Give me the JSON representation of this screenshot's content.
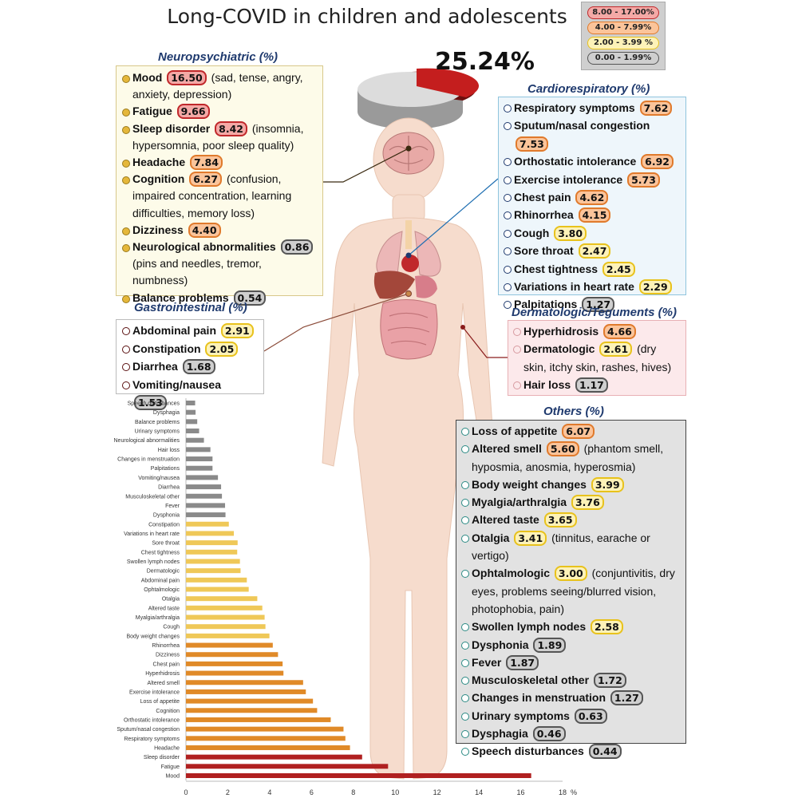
{
  "title": "Long-COVID in children and adolescents",
  "legend": [
    {
      "label": "8.00 - 17.00%",
      "fill": "#f4a9a6",
      "border": "#c0282b"
    },
    {
      "label": "4.00 - 7.99%",
      "fill": "#fbc49a",
      "border": "#e07a2c"
    },
    {
      "label": "2.00 - 3.99 %",
      "fill": "#fdf2b8",
      "border": "#e8c21c"
    },
    {
      "label": "0.00 - 1.99%",
      "fill": "#cfcfcf",
      "border": "#555555"
    }
  ],
  "pie": {
    "label": "25.24%",
    "value": 25.24
  },
  "panels": {
    "neuro": {
      "title": "Neuropsychiatric (%)",
      "items": [
        {
          "name": "Mood",
          "value": "16.50",
          "desc": "(sad, tense, angry, anxiety, depression)",
          "level": "red"
        },
        {
          "name": "Fatigue",
          "value": "9.66",
          "desc": "",
          "level": "red"
        },
        {
          "name": "Sleep disorder",
          "value": "8.42",
          "desc": "(insomnia, hypersomnia, poor sleep quality)",
          "level": "red"
        },
        {
          "name": "Headache",
          "value": "7.84",
          "desc": "",
          "level": "orange"
        },
        {
          "name": "Cognition",
          "value": "6.27",
          "desc": "(confusion, impaired concentration, learning difficulties, memory loss)",
          "level": "orange"
        },
        {
          "name": "Dizziness",
          "value": "4.40",
          "desc": "",
          "level": "orange"
        },
        {
          "name": "Neurological abnormalities",
          "value": "0.86",
          "desc": "(pins and needles, tremor, numbness)",
          "level": "gray"
        },
        {
          "name": "Balance problems",
          "value": "0.54",
          "desc": "",
          "level": "gray"
        }
      ]
    },
    "gastro": {
      "title": "Gastrointestinal (%)",
      "items": [
        {
          "name": "Abdominal pain",
          "value": "2.91",
          "desc": "",
          "level": "yellow"
        },
        {
          "name": "Constipation",
          "value": "2.05",
          "desc": "",
          "level": "yellow"
        },
        {
          "name": "Diarrhea",
          "value": "1.68",
          "desc": "",
          "level": "gray"
        },
        {
          "name": "Vomiting/nausea",
          "value": "1.53",
          "desc": "",
          "level": "gray"
        }
      ]
    },
    "cardio": {
      "title": "Cardiorespiratory (%)",
      "items": [
        {
          "name": "Respiratory symptoms",
          "value": "7.62",
          "desc": "",
          "level": "orange"
        },
        {
          "name": "Sputum/nasal congestion",
          "value": "7.53",
          "desc": "",
          "level": "orange"
        },
        {
          "name": "Orthostatic intolerance",
          "value": "6.92",
          "desc": "",
          "level": "orange"
        },
        {
          "name": "Exercise intolerance",
          "value": "5.73",
          "desc": "",
          "level": "orange"
        },
        {
          "name": "Chest pain",
          "value": "4.62",
          "desc": "",
          "level": "orange"
        },
        {
          "name": "Rhinorrhea",
          "value": "4.15",
          "desc": "",
          "level": "orange"
        },
        {
          "name": "Cough",
          "value": "3.80",
          "desc": "",
          "level": "yellow"
        },
        {
          "name": "Sore throat",
          "value": "2.47",
          "desc": "",
          "level": "yellow"
        },
        {
          "name": "Chest tightness",
          "value": "2.45",
          "desc": "",
          "level": "yellow"
        },
        {
          "name": "Variations in heart rate",
          "value": "2.29",
          "desc": "",
          "level": "yellow"
        },
        {
          "name": "Palpitations",
          "value": "1.27",
          "desc": "",
          "level": "gray"
        }
      ]
    },
    "derm": {
      "title": "Dermatologic/Teguments (%)",
      "items": [
        {
          "name": "Hyperhidrosis",
          "value": "4.66",
          "desc": "",
          "level": "orange"
        },
        {
          "name": "Dermatologic",
          "value": "2.61",
          "desc": "(dry skin, itchy skin, rashes, hives)",
          "level": "yellow"
        },
        {
          "name": "Hair loss",
          "value": "1.17",
          "desc": "",
          "level": "gray"
        }
      ]
    },
    "others": {
      "title": "Others (%)",
      "items": [
        {
          "name": "Loss of appetite",
          "value": "6.07",
          "desc": "",
          "level": "orange"
        },
        {
          "name": "Altered smell",
          "value": "5.60",
          "desc": "(phantom smell, hyposmia, anosmia, hyperosmia)",
          "level": "orange"
        },
        {
          "name": "Body weight changes",
          "value": "3.99",
          "desc": "",
          "level": "yellow"
        },
        {
          "name": "Myalgia/arthralgia",
          "value": "3.76",
          "desc": "",
          "level": "yellow"
        },
        {
          "name": "Altered taste",
          "value": "3.65",
          "desc": "",
          "level": "yellow"
        },
        {
          "name": "Otalgia",
          "value": "3.41",
          "desc": "(tinnitus, earache or vertigo)",
          "level": "yellow"
        },
        {
          "name": "Ophtalmologic",
          "value": "3.00",
          "desc": "(conjuntivitis, dry eyes, problems seeing/blurred vision, photophobia, pain)",
          "level": "yellow"
        },
        {
          "name": "Swollen lymph nodes",
          "value": "2.58",
          "desc": "",
          "level": "yellow"
        },
        {
          "name": "Dysphonia",
          "value": "1.89",
          "desc": "",
          "level": "gray"
        },
        {
          "name": "Fever",
          "value": "1.87",
          "desc": "",
          "level": "gray"
        },
        {
          "name": "Musculoskeletal other",
          "value": "1.72",
          "desc": "",
          "level": "gray"
        },
        {
          "name": "Changes in menstruation",
          "value": "1.27",
          "desc": "",
          "level": "gray"
        },
        {
          "name": "Urinary symptoms",
          "value": "0.63",
          "desc": "",
          "level": "gray"
        },
        {
          "name": "Dysphagia",
          "value": "0.46",
          "desc": "",
          "level": "gray"
        },
        {
          "name": "Speech disturbances",
          "value": "0.44",
          "desc": "",
          "level": "gray"
        }
      ]
    }
  },
  "chart_data": {
    "type": "bar",
    "orientation": "horizontal",
    "xlabel": "%",
    "xlim": [
      0,
      18
    ],
    "xticks": [
      0,
      2,
      4,
      6,
      8,
      10,
      12,
      14,
      16,
      18
    ],
    "colors": {
      "red": "#b02020",
      "orange": "#e08a28",
      "yellow": "#efc858",
      "gray": "#8a8a8a"
    },
    "categories": [
      "Speech disturbances",
      "Dysphagia",
      "Balance problems",
      "Urinary symptoms",
      "Neurological abnormalities",
      "Hair loss",
      "Changes in menstruation",
      "Palpitations",
      "Vomiting/nausea",
      "Diarrhea",
      "Musculoskeletal other",
      "Fever",
      "Dysphonia",
      "Constipation",
      "Variations in heart rate",
      "Sore throat",
      "Chest tightness",
      "Swollen lymph nodes",
      "Dermatologic",
      "Abdominal pain",
      "Ophtalmologic",
      "Otalgia",
      "Altered taste",
      "Myalgia/arthralgia",
      "Cough",
      "Body weight changes",
      "Rhinorrhea",
      "Dizziness",
      "Chest pain",
      "Hyperhidrosis",
      "Altered smell",
      "Exercise intolerance",
      "Loss of appetite",
      "Cognition",
      "Orthostatic intolerance",
      "Sputum/nasal congestion",
      "Respiratory symptoms",
      "Headache",
      "Sleep disorder",
      "Fatigue",
      "Mood"
    ],
    "values": [
      0.44,
      0.46,
      0.54,
      0.63,
      0.86,
      1.17,
      1.27,
      1.27,
      1.53,
      1.68,
      1.72,
      1.87,
      1.89,
      2.05,
      2.29,
      2.47,
      2.45,
      2.58,
      2.61,
      2.91,
      3.0,
      3.41,
      3.65,
      3.76,
      3.8,
      3.99,
      4.15,
      4.4,
      4.62,
      4.66,
      5.6,
      5.73,
      6.07,
      6.27,
      6.92,
      7.53,
      7.62,
      7.84,
      8.42,
      9.66,
      16.5
    ]
  }
}
